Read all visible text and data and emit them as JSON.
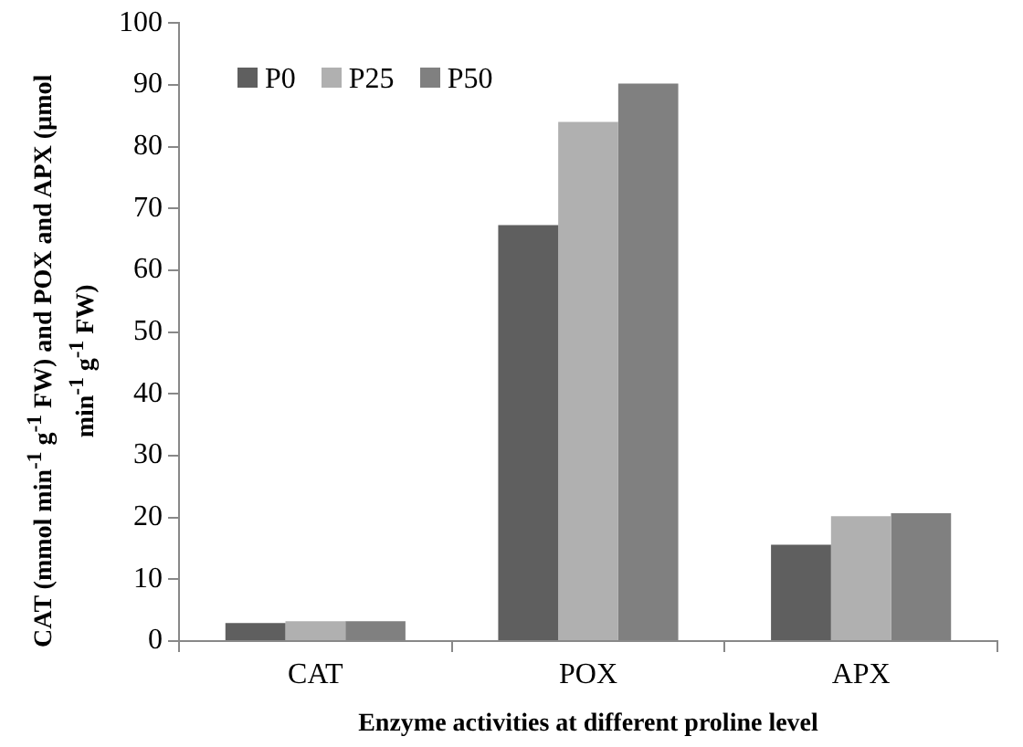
{
  "chart_data": {
    "type": "bar",
    "xlabel": "Enzyme activities at different proline level",
    "ylabel": "CAT (mmol min$^{-1}$ g$^{-1}$ FW) and POX and APX (µmol min$^{-1}$ g$^{-1}$ FW)",
    "categories": [
      "CAT",
      "POX",
      "APX"
    ],
    "series": [
      {
        "name": "P0",
        "color": "#5f5f5f",
        "values": [
          2.9,
          67.3,
          15.6
        ]
      },
      {
        "name": "P25",
        "color": "#b0b0b0",
        "values": [
          3.2,
          84.0,
          20.2
        ]
      },
      {
        "name": "P50",
        "color": "#808080",
        "values": [
          3.2,
          90.2,
          20.7
        ]
      }
    ],
    "ylim": [
      0,
      100
    ],
    "yticks": [
      0,
      10,
      20,
      30,
      40,
      50,
      60,
      70,
      80,
      90,
      100
    ],
    "grid": false,
    "legend": "top left"
  }
}
